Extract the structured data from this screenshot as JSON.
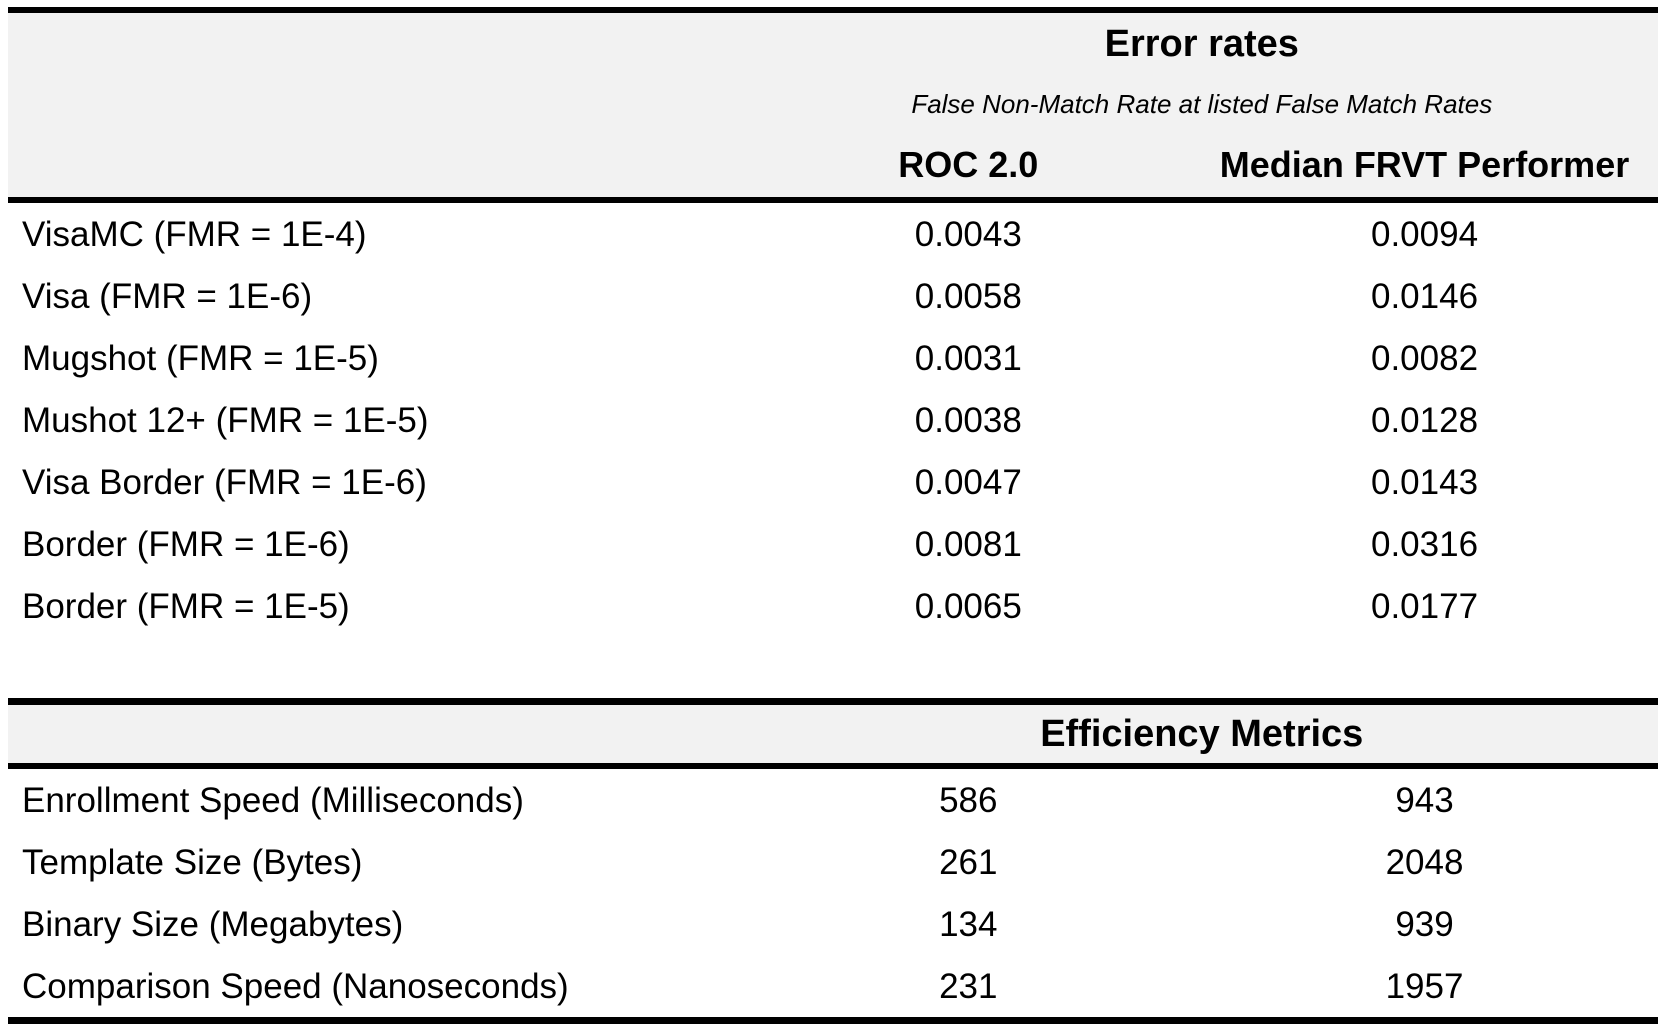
{
  "colors": {
    "header_bg": "#f2f2f2",
    "border": "#000000",
    "text": "#000000",
    "page_bg": "#ffffff"
  },
  "error_table": {
    "title": "Error rates",
    "subtitle": "False Non-Match Rate at listed False Match Rates",
    "columns": [
      "ROC 2.0",
      "Median FRVT Performer"
    ],
    "rows": [
      {
        "label": "VisaMC (FMR = 1E-4)",
        "roc": "0.0043",
        "median": "0.0094"
      },
      {
        "label": "Visa (FMR = 1E-6)",
        "roc": "0.0058",
        "median": "0.0146"
      },
      {
        "label": "Mugshot (FMR = 1E-5)",
        "roc": "0.0031",
        "median": "0.0082"
      },
      {
        "label": "Mushot 12+ (FMR = 1E-5)",
        "roc": "0.0038",
        "median": "0.0128"
      },
      {
        "label": "Visa Border (FMR = 1E-6)",
        "roc": "0.0047",
        "median": "0.0143"
      },
      {
        "label": "Border (FMR = 1E-6)",
        "roc": "0.0081",
        "median": "0.0316"
      },
      {
        "label": "Border (FMR = 1E-5)",
        "roc": "0.0065",
        "median": "0.0177"
      }
    ]
  },
  "efficiency_table": {
    "title": "Efficiency Metrics",
    "rows": [
      {
        "label": "Enrollment Speed (Milliseconds)",
        "roc": "586",
        "median": "943"
      },
      {
        "label": "Template Size (Bytes)",
        "roc": "261",
        "median": "2048"
      },
      {
        "label": "Binary Size (Megabytes)",
        "roc": "134",
        "median": "939"
      },
      {
        "label": "Comparison Speed (Nanoseconds)",
        "roc": "231",
        "median": "1957"
      }
    ]
  },
  "chart_data": [
    {
      "type": "table",
      "title": "Error rates",
      "subtitle": "False Non-Match Rate at listed False Match Rates",
      "columns": [
        "",
        "ROC 2.0",
        "Median FRVT Performer"
      ],
      "rows": [
        [
          "VisaMC (FMR = 1E-4)",
          0.0043,
          0.0094
        ],
        [
          "Visa (FMR = 1E-6)",
          0.0058,
          0.0146
        ],
        [
          "Mugshot (FMR = 1E-5)",
          0.0031,
          0.0082
        ],
        [
          "Mushot 12+ (FMR = 1E-5)",
          0.0038,
          0.0128
        ],
        [
          "Visa Border (FMR = 1E-6)",
          0.0047,
          0.0143
        ],
        [
          "Border (FMR = 1E-6)",
          0.0081,
          0.0316
        ],
        [
          "Border (FMR = 1E-5)",
          0.0065,
          0.0177
        ]
      ]
    },
    {
      "type": "table",
      "title": "Efficiency Metrics",
      "columns": [
        "",
        "ROC 2.0",
        "Median FRVT Performer"
      ],
      "rows": [
        [
          "Enrollment Speed (Milliseconds)",
          586,
          943
        ],
        [
          "Template Size (Bytes)",
          261,
          2048
        ],
        [
          "Binary Size (Megabytes)",
          134,
          939
        ],
        [
          "Comparison Speed (Nanoseconds)",
          231,
          1957
        ]
      ]
    }
  ]
}
